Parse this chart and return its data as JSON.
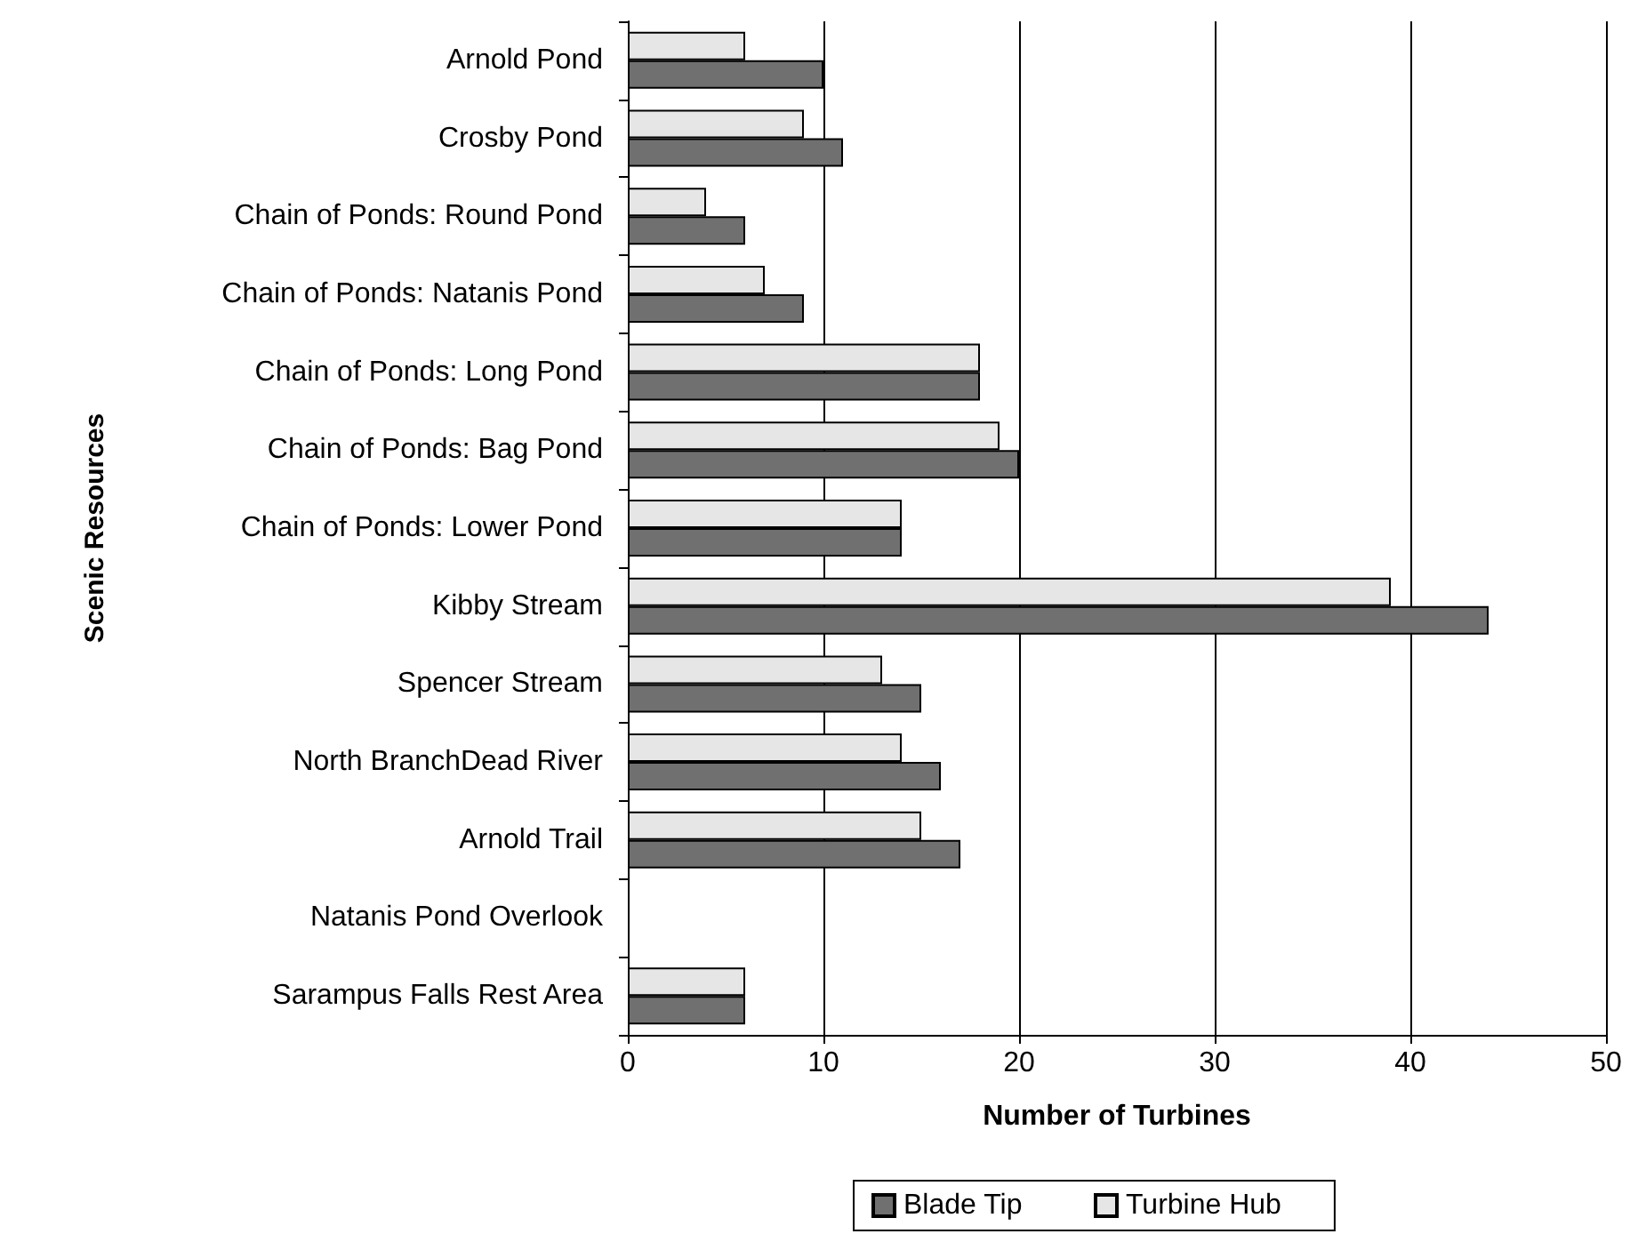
{
  "chart_data": {
    "type": "bar",
    "orientation": "horizontal",
    "xlabel": "Number of Turbines",
    "ylabel": "Scenic Resources",
    "categories": [
      "Arnold Pond",
      "Crosby Pond",
      "Chain of Ponds: Round Pond",
      "Chain of Ponds: Natanis Pond",
      "Chain of Ponds: Long Pond",
      "Chain of Ponds: Bag Pond",
      "Chain of Ponds: Lower Pond",
      "Kibby Stream",
      "Spencer Stream",
      "North BranchDead River",
      "Arnold Trail",
      "Natanis Pond Overlook",
      "Sarampus Falls Rest Area"
    ],
    "series": [
      {
        "name": "Blade Tip",
        "color": "#707070",
        "values": [
          10,
          11,
          6,
          9,
          18,
          20,
          14,
          44,
          15,
          16,
          17,
          null,
          6
        ]
      },
      {
        "name": "Turbine Hub",
        "color": "#e6e6e6",
        "values": [
          6,
          9,
          4,
          7,
          18,
          19,
          14,
          39,
          13,
          14,
          15,
          null,
          6
        ]
      }
    ],
    "xlim": [
      0,
      50
    ],
    "xticks": [
      0,
      10,
      20,
      30,
      40,
      50
    ],
    "grid": "x",
    "legend": "bottom"
  }
}
